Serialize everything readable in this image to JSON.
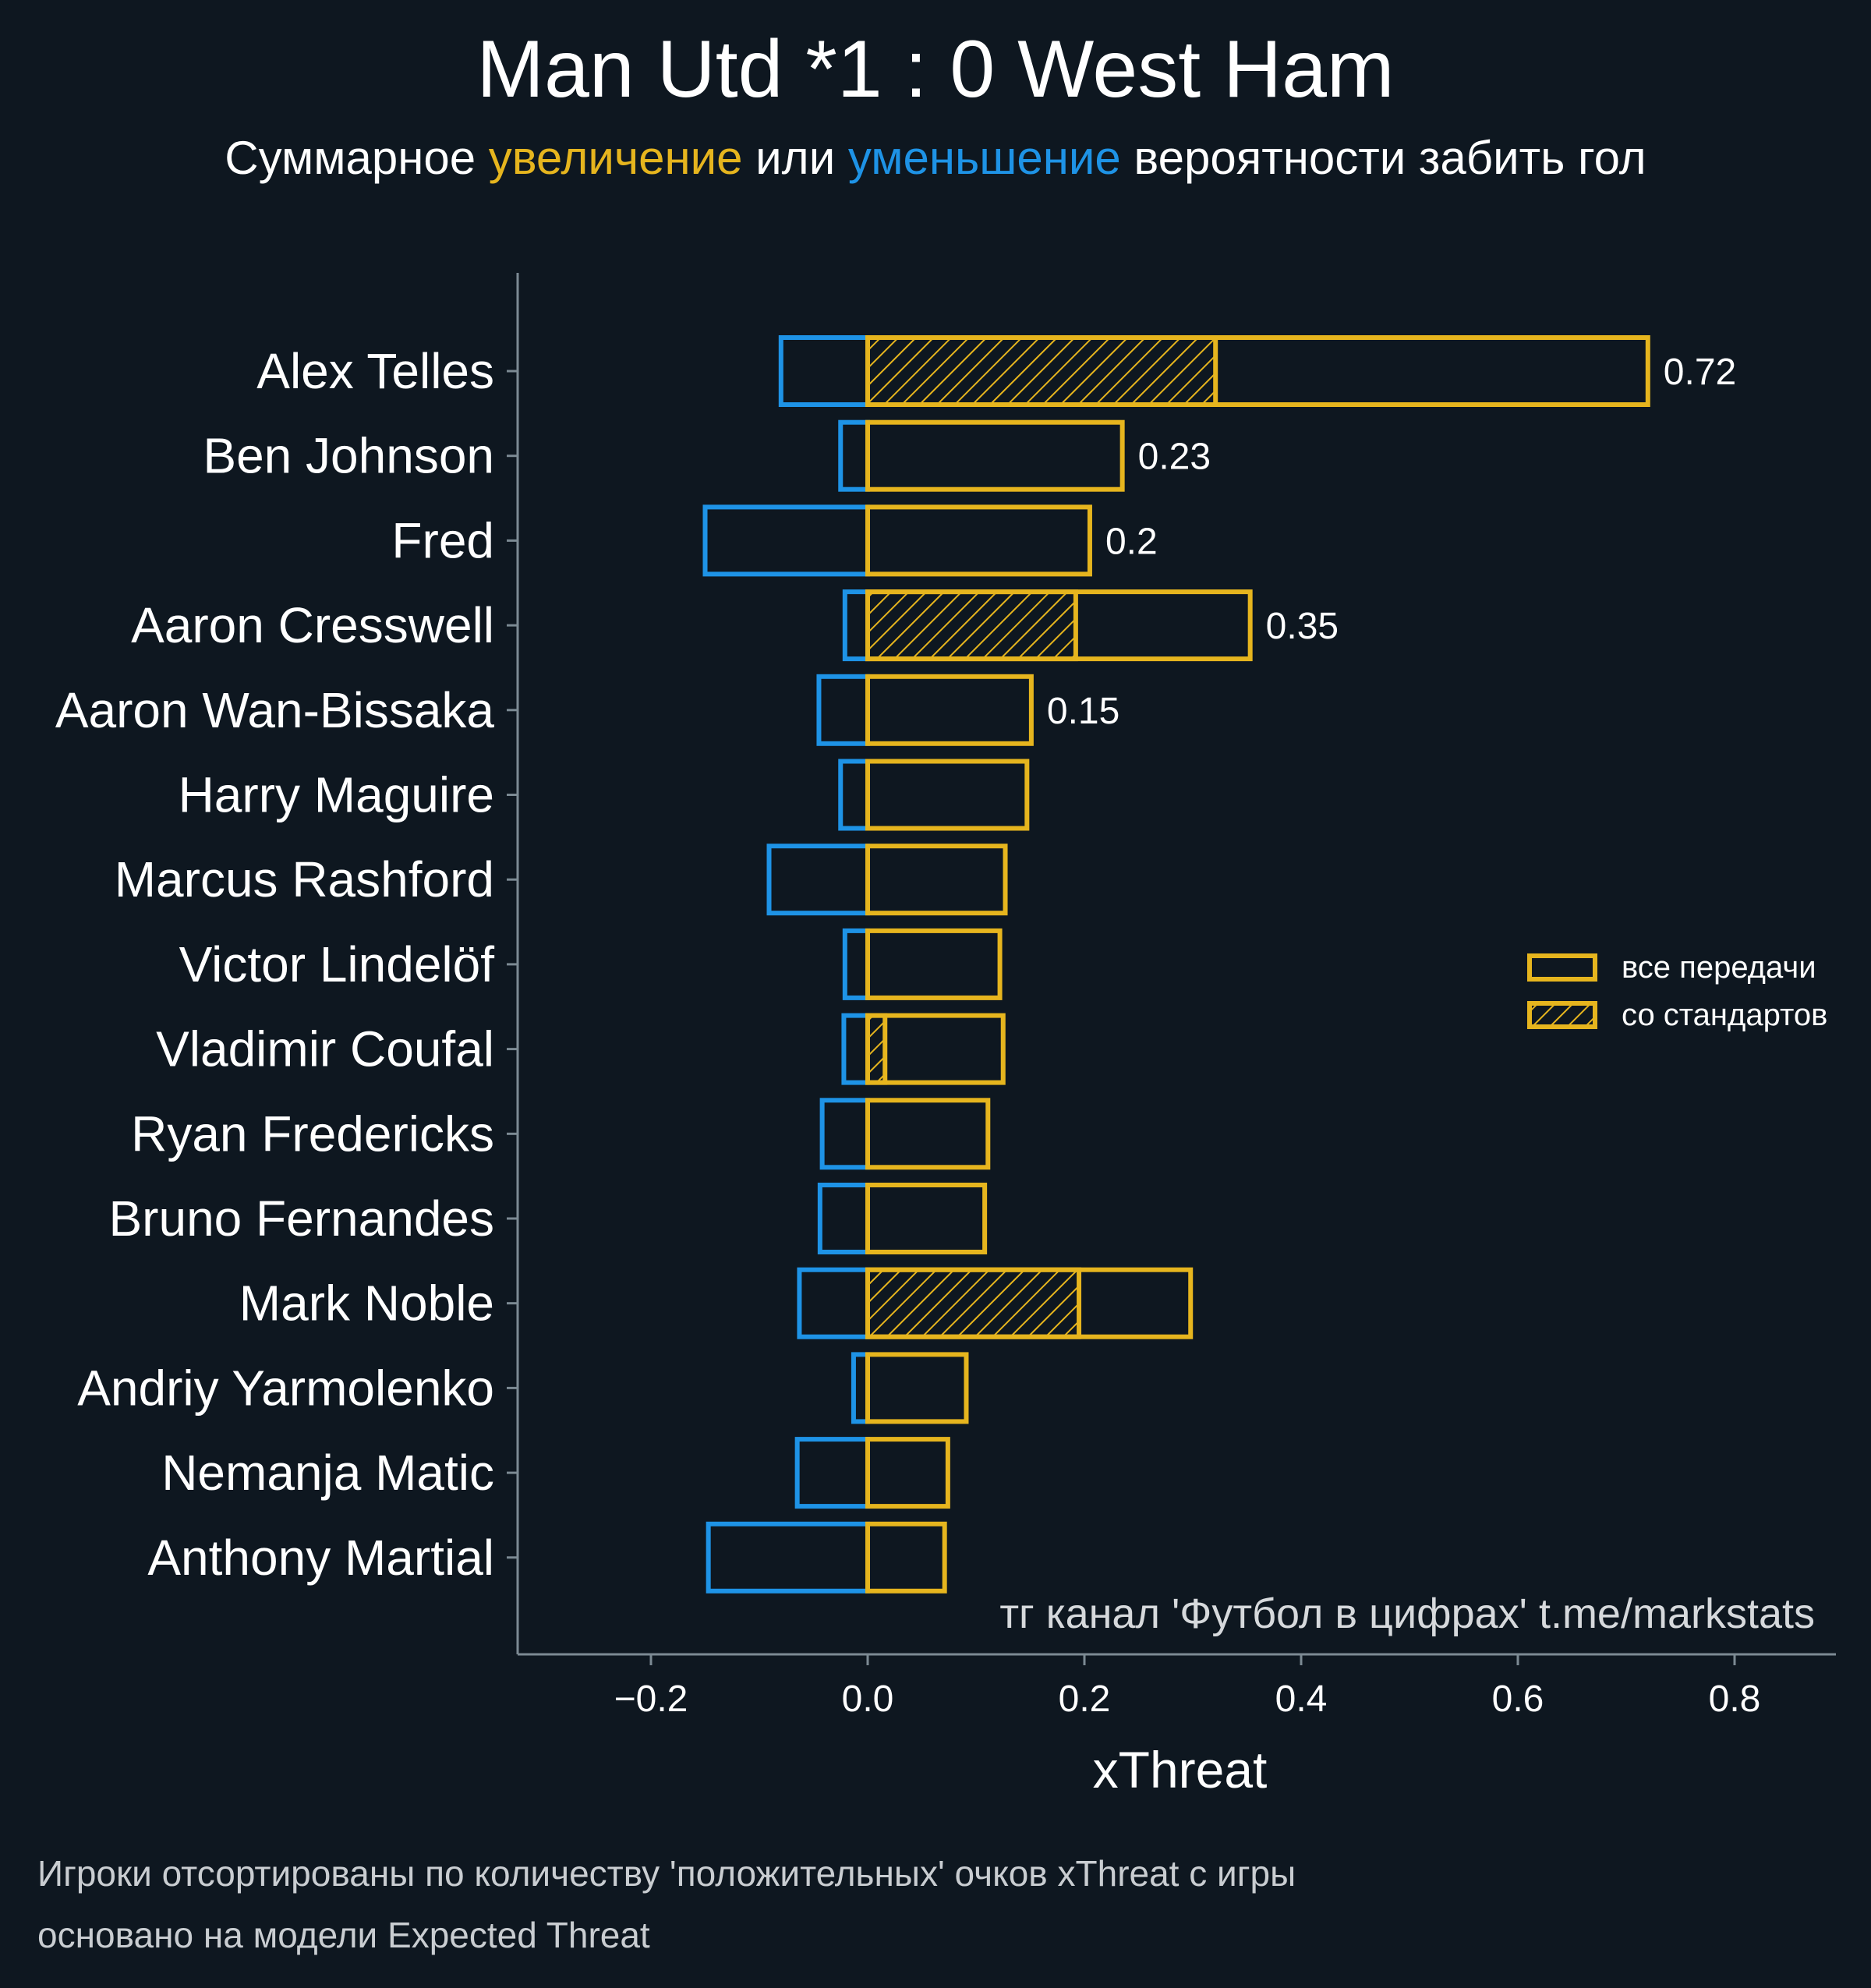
{
  "title": "Man Utd *1 : 0 West Ham",
  "subtitle": {
    "part1": "Суммарное ",
    "highlight_increase": "увеличение",
    "part2": " или ",
    "highlight_decrease": "уменьшение",
    "part3": " вероятности забить гол"
  },
  "colors": {
    "background": "#0e1720",
    "positive": "#e6b51e",
    "negative": "#1e93e6",
    "axis": "#7c8a93",
    "text": "#ffffff"
  },
  "watermark": "тг канал 'Футбол в цифрах'  t.me/markstats",
  "footnotes": [
    "Игроки отсортированы по количеству 'положительных' очков xThreat с игры",
    "основано на модели Expected Threat"
  ],
  "chart_data": {
    "type": "bar",
    "orientation": "horizontal",
    "xlabel": "xThreat",
    "xlim": [
      -0.32,
      0.89
    ],
    "xticks": [
      -0.2,
      0.0,
      0.2,
      0.4,
      0.6,
      0.8
    ],
    "xtick_labels": [
      "−0.2",
      "0.0",
      "0.2",
      "0.4",
      "0.6",
      "0.8"
    ],
    "legend": {
      "placement": "right",
      "entries": [
        "все передачи",
        "со стандартов"
      ]
    },
    "categories": [
      "Alex Telles",
      "Ben Johnson",
      "Fred",
      "Aaron Cresswell",
      "Aaron Wan-Bissaka",
      "Harry Maguire",
      "Marcus Rashford",
      "Victor Lindelöf",
      "Vladimir Coufal",
      "Ryan Fredericks",
      "Bruno Fernandes",
      "Mark Noble",
      "Andriy Yarmolenko",
      "Nemanja Matic",
      "Anthony Martial"
    ],
    "series": [
      {
        "name": "все передачи",
        "values": [
          0.72,
          0.235,
          0.205,
          0.353,
          0.151,
          0.147,
          0.127,
          0.122,
          0.125,
          0.111,
          0.108,
          0.298,
          0.091,
          0.074,
          0.071
        ]
      },
      {
        "name": "со стандартов",
        "values": [
          0.321,
          0,
          0,
          0.192,
          0,
          0,
          0,
          0,
          0.016,
          0,
          0,
          0.195,
          0,
          0,
          0
        ]
      },
      {
        "values": [
          -0.08,
          -0.025,
          -0.15,
          -0.021,
          -0.045,
          -0.025,
          -0.091,
          -0.021,
          -0.022,
          -0.042,
          -0.044,
          -0.063,
          -0.013,
          -0.065,
          -0.147
        ]
      }
    ],
    "value_labels": [
      "0.72",
      "0.23",
      "0.2",
      "0.35",
      "0.15",
      "",
      "",
      "",
      "",
      "",
      "",
      "",
      "",
      "",
      ""
    ]
  }
}
